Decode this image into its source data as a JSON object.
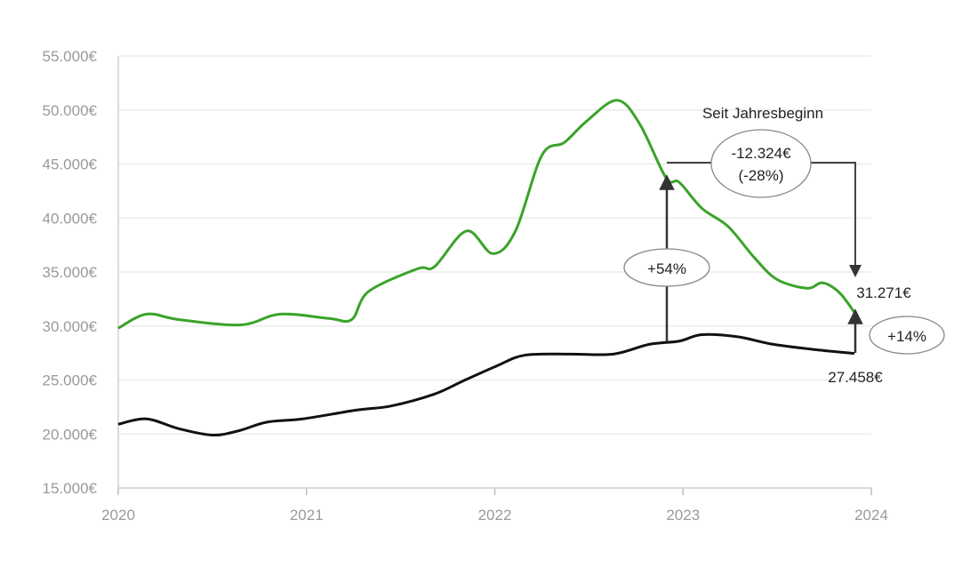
{
  "chart_data": {
    "type": "line",
    "title": "",
    "xlabel": "",
    "ylabel": "",
    "xlim": [
      2020,
      2024
    ],
    "ylim": [
      15000,
      55000
    ],
    "grid": true,
    "x_ticks": [
      "2020",
      "2021",
      "2022",
      "2023",
      "2024"
    ],
    "y_ticks": [
      "15.000€",
      "20.000€",
      "25.000€",
      "30.000€",
      "35.000€",
      "40.000€",
      "45.000€",
      "50.000€",
      "55.000€"
    ],
    "series": [
      {
        "name": "green-series",
        "color": "#3aa329",
        "points": [
          [
            2020.0,
            29800
          ],
          [
            2020.15,
            31100
          ],
          [
            2020.32,
            30600
          ],
          [
            2020.65,
            30100
          ],
          [
            2020.86,
            31100
          ],
          [
            2021.12,
            30700
          ],
          [
            2021.24,
            30600
          ],
          [
            2021.33,
            33200
          ],
          [
            2021.59,
            35300
          ],
          [
            2021.68,
            35500
          ],
          [
            2021.85,
            38800
          ],
          [
            2021.99,
            36700
          ],
          [
            2022.11,
            38800
          ],
          [
            2022.25,
            45800
          ],
          [
            2022.37,
            47000
          ],
          [
            2022.49,
            49000
          ],
          [
            2022.65,
            50900
          ],
          [
            2022.77,
            48700
          ],
          [
            2022.91,
            43700
          ],
          [
            2022.98,
            43300
          ],
          [
            2023.1,
            40900
          ],
          [
            2023.24,
            39200
          ],
          [
            2023.38,
            36300
          ],
          [
            2023.5,
            34300
          ],
          [
            2023.66,
            33500
          ],
          [
            2023.74,
            34000
          ],
          [
            2023.83,
            33100
          ],
          [
            2023.91,
            31271
          ]
        ]
      },
      {
        "name": "black-series",
        "color": "#111111",
        "points": [
          [
            2020.0,
            20900
          ],
          [
            2020.15,
            21400
          ],
          [
            2020.32,
            20500
          ],
          [
            2020.5,
            19900
          ],
          [
            2020.64,
            20300
          ],
          [
            2020.79,
            21100
          ],
          [
            2020.98,
            21400
          ],
          [
            2021.26,
            22200
          ],
          [
            2021.45,
            22600
          ],
          [
            2021.68,
            23700
          ],
          [
            2021.83,
            24900
          ],
          [
            2022.01,
            26300
          ],
          [
            2022.16,
            27300
          ],
          [
            2022.4,
            27400
          ],
          [
            2022.63,
            27400
          ],
          [
            2022.82,
            28300
          ],
          [
            2022.98,
            28600
          ],
          [
            2023.1,
            29200
          ],
          [
            2023.29,
            29000
          ],
          [
            2023.48,
            28300
          ],
          [
            2023.71,
            27800
          ],
          [
            2023.91,
            27458
          ]
        ]
      }
    ],
    "annotations": {
      "header": "Seit Jahresbeginn",
      "ytd_change_value": "-12.324€",
      "ytd_change_pct": "(-28%)",
      "gap_start_pct": "+54%",
      "gap_end_pct": "+14%",
      "green_end_label": "31.271€",
      "black_end_label": "27.458€"
    }
  }
}
